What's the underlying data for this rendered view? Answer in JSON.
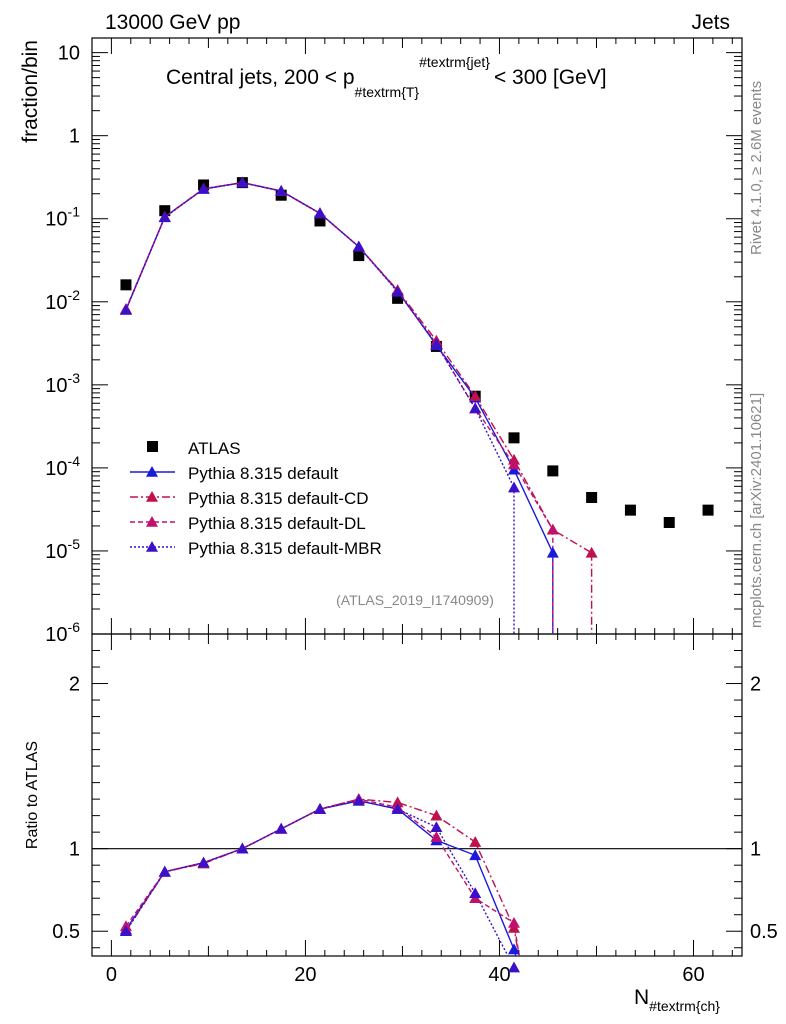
{
  "header": {
    "left": "13000 GeV pp",
    "right": "Jets"
  },
  "side": {
    "rivet": "Rivet 4.1.0, ≥ 2.6M events",
    "mcplots": "mcplots.cern.ch [arXiv:2401.10621]"
  },
  "chart_data": {
    "type": "scatter",
    "title": "Central jets, 200 < p_{#textrm{T}}^{#textrm{jet}} < 300 [GeV]",
    "title_main_left": "Central jets, 200 < p",
    "title_sub": "#textrm{T}",
    "title_sup": "#textrm{jet}",
    "title_main_right": "< 300 [GeV]",
    "analysis_label": "(ATLAS_2019_I1740909)",
    "xlabel": "N",
    "xlabel_sub": "#textrm{ch}",
    "ylabel": "fraction/bin",
    "ratio_ylabel": "Ratio to ATLAS",
    "xlim": [
      -2,
      65
    ],
    "ylim": [
      1e-06,
      15
    ],
    "ratio_ylim": [
      0.35,
      2.3
    ],
    "x_ticks": [
      "0",
      "20",
      "40",
      "60"
    ],
    "y_ticks_main": [
      {
        "v": 10,
        "label": "10"
      },
      {
        "v": 1,
        "label": "1"
      },
      {
        "v": 0.1,
        "label": "10^-1"
      },
      {
        "v": 0.01,
        "label": "10^-2"
      },
      {
        "v": 0.001,
        "label": "10^-3"
      },
      {
        "v": 0.0001,
        "label": "10^-4"
      },
      {
        "v": 1e-05,
        "label": "10^-5"
      },
      {
        "v": 1e-06,
        "label": "10^-6"
      }
    ],
    "y_ticks_ratio": [
      "0.5",
      "1",
      "2"
    ],
    "series": [
      {
        "name": "ATLAS",
        "style": "data",
        "color": "#000000",
        "x": [
          1.5,
          5.5,
          9.5,
          13.5,
          17.5,
          21.5,
          25.5,
          29.5,
          33.5,
          37.5,
          41.5,
          45.5,
          49.5,
          53.5,
          57.5,
          61.5
        ],
        "values": [
          0.016,
          0.125,
          0.255,
          0.272,
          0.192,
          0.094,
          0.036,
          0.011,
          0.0029,
          0.00073,
          0.00023,
          9.2e-05,
          4.4e-05,
          3.1e-05,
          2.2e-05,
          3.1e-05
        ]
      },
      {
        "name": "Pythia 8.315 default",
        "style": "solid",
        "color": "#1a1adc",
        "x": [
          1.5,
          5.5,
          9.5,
          13.5,
          17.5,
          21.5,
          25.5,
          29.5,
          33.5,
          37.5,
          41.5,
          45.5
        ],
        "values": [
          0.008,
          0.105,
          0.228,
          0.272,
          0.216,
          0.116,
          0.046,
          0.0135,
          0.003,
          0.0007,
          9.5e-05,
          9.5e-06
        ],
        "ratio": [
          0.51,
          0.86,
          0.915,
          1.0,
          1.12,
          1.24,
          1.29,
          1.24,
          1.05,
          0.96,
          0.39,
          null
        ]
      },
      {
        "name": "Pythia 8.315 default-CD",
        "style": "dashdot",
        "color": "#c0104e",
        "x": [
          1.5,
          5.5,
          9.5,
          13.5,
          17.5,
          21.5,
          25.5,
          29.5,
          33.5,
          37.5,
          41.5,
          45.5,
          49.5
        ],
        "values": [
          0.008,
          0.105,
          0.23,
          0.272,
          0.215,
          0.116,
          0.046,
          0.0138,
          0.0034,
          0.00073,
          0.000125,
          1.8e-05,
          9.5e-06
        ],
        "ratio": [
          0.5,
          0.86,
          0.91,
          1.0,
          1.12,
          1.24,
          1.3,
          1.28,
          1.2,
          1.04,
          0.52,
          null,
          null
        ]
      },
      {
        "name": "Pythia 8.315 default-DL",
        "style": "dashed",
        "color": "#c0106e",
        "x": [
          1.5,
          5.5,
          9.5,
          13.5,
          17.5,
          21.5,
          25.5,
          29.5,
          33.5,
          37.5,
          41.5,
          45.5
        ],
        "values": [
          0.0082,
          0.105,
          0.23,
          0.272,
          0.215,
          0.116,
          0.046,
          0.0135,
          0.0031,
          0.00052,
          0.00011,
          1.8e-05
        ],
        "ratio": [
          0.53,
          0.86,
          0.915,
          1.0,
          1.12,
          1.24,
          1.3,
          1.25,
          1.07,
          0.7,
          0.55,
          null
        ]
      },
      {
        "name": "Pythia 8.315 default-MBR",
        "style": "dotted",
        "color": "#3a10c8",
        "x": [
          1.5,
          5.5,
          9.5,
          13.5,
          17.5,
          21.5,
          25.5,
          29.5,
          33.5,
          37.5,
          41.5
        ],
        "values": [
          0.008,
          0.104,
          0.228,
          0.272,
          0.216,
          0.116,
          0.046,
          0.0132,
          0.0031,
          0.00052,
          5.8e-05
        ],
        "ratio": [
          0.5,
          0.86,
          0.915,
          1.0,
          1.12,
          1.24,
          1.29,
          1.24,
          1.13,
          0.73,
          0.28
        ]
      }
    ]
  }
}
